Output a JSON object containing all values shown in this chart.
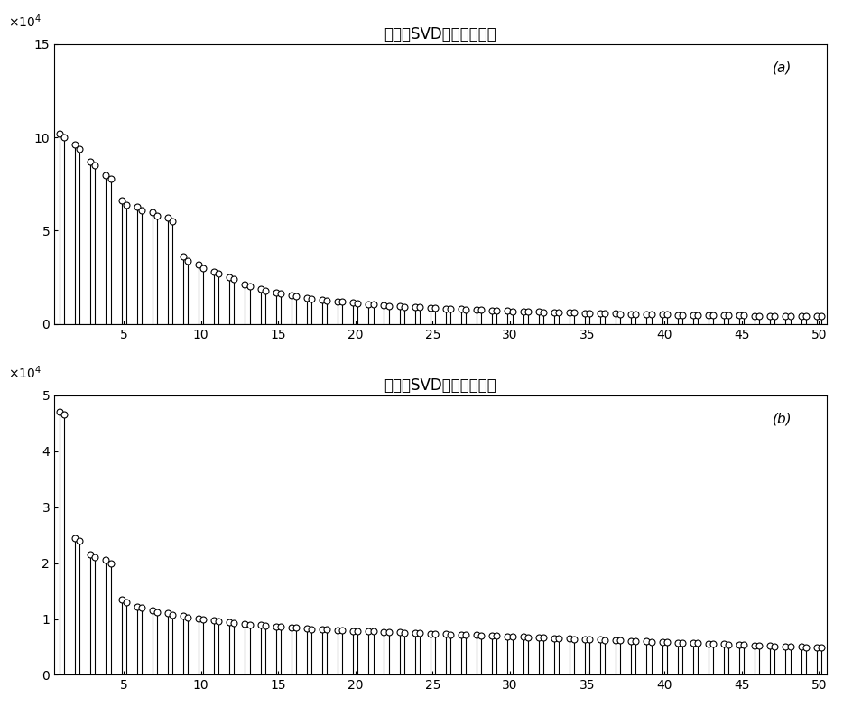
{
  "title1": "第一次SVD奇异值分布图",
  "title2": "第二次SVD奇异值分布图",
  "label_a": "(a)",
  "label_b": "(b)",
  "values1": [
    102000,
    100000,
    96000,
    94000,
    87000,
    85000,
    80000,
    78000,
    66000,
    64000,
    63000,
    61000,
    60000,
    58000,
    57000,
    55000,
    36000,
    34000,
    32000,
    30000,
    28000,
    27000,
    25000,
    24000,
    21000,
    20000,
    19000,
    18000,
    17000,
    16500,
    15500,
    15000,
    14000,
    13500,
    13000,
    12500,
    12200,
    11800,
    11400,
    11000,
    10700,
    10400,
    10100,
    9800,
    9600,
    9300,
    9100,
    8900,
    8700,
    8500,
    8300,
    8100,
    7900,
    7800,
    7600,
    7500,
    7300,
    7200,
    7100,
    6900,
    6800,
    6700,
    6600,
    6400,
    6300,
    6200,
    6100,
    6000,
    5900,
    5800,
    5700,
    5600,
    5500,
    5400,
    5350,
    5250,
    5200,
    5100,
    5050,
    5000,
    4950,
    4900,
    4850,
    4800,
    4750,
    4700,
    4650,
    4600,
    4550,
    4500,
    4450,
    4400,
    4350,
    4300,
    4250,
    4200,
    4150,
    4100,
    4050,
    4000
  ],
  "values2": [
    47000,
    46500,
    24500,
    24000,
    21500,
    21000,
    20500,
    20000,
    13500,
    13000,
    12200,
    12000,
    11500,
    11200,
    11000,
    10800,
    10500,
    10300,
    10100,
    9900,
    9700,
    9600,
    9400,
    9200,
    9100,
    9000,
    8900,
    8800,
    8700,
    8600,
    8500,
    8400,
    8300,
    8200,
    8150,
    8100,
    8000,
    7950,
    7900,
    7850,
    7800,
    7750,
    7700,
    7650,
    7600,
    7550,
    7500,
    7450,
    7400,
    7350,
    7300,
    7250,
    7200,
    7150,
    7100,
    7050,
    7000,
    6950,
    6900,
    6850,
    6800,
    6750,
    6700,
    6650,
    6600,
    6550,
    6500,
    6450,
    6400,
    6350,
    6300,
    6250,
    6200,
    6150,
    6100,
    6050,
    6000,
    5950,
    5900,
    5850,
    5800,
    5750,
    5700,
    5650,
    5600,
    5550,
    5500,
    5450,
    5400,
    5350,
    5300,
    5250,
    5200,
    5150,
    5100,
    5050,
    5000,
    4950,
    4900,
    4850
  ],
  "ylim1": [
    0,
    150000
  ],
  "ylim2": [
    0,
    50000
  ],
  "yticks1": [
    0,
    50000,
    100000,
    150000
  ],
  "yticks2": [
    0,
    10000,
    20000,
    30000,
    40000,
    50000
  ],
  "ytick_labels1": [
    "0",
    "5",
    "10",
    "15"
  ],
  "ytick_labels2": [
    "0",
    "1",
    "2",
    "3",
    "4",
    "5"
  ],
  "xlim": [
    0.5,
    50.5
  ],
  "xticks": [
    5,
    10,
    15,
    20,
    25,
    30,
    35,
    40,
    45,
    50
  ],
  "bg_color": "#ffffff",
  "line_color": "#000000",
  "marker_color": "#ffffff",
  "marker_edge_color": "#000000"
}
